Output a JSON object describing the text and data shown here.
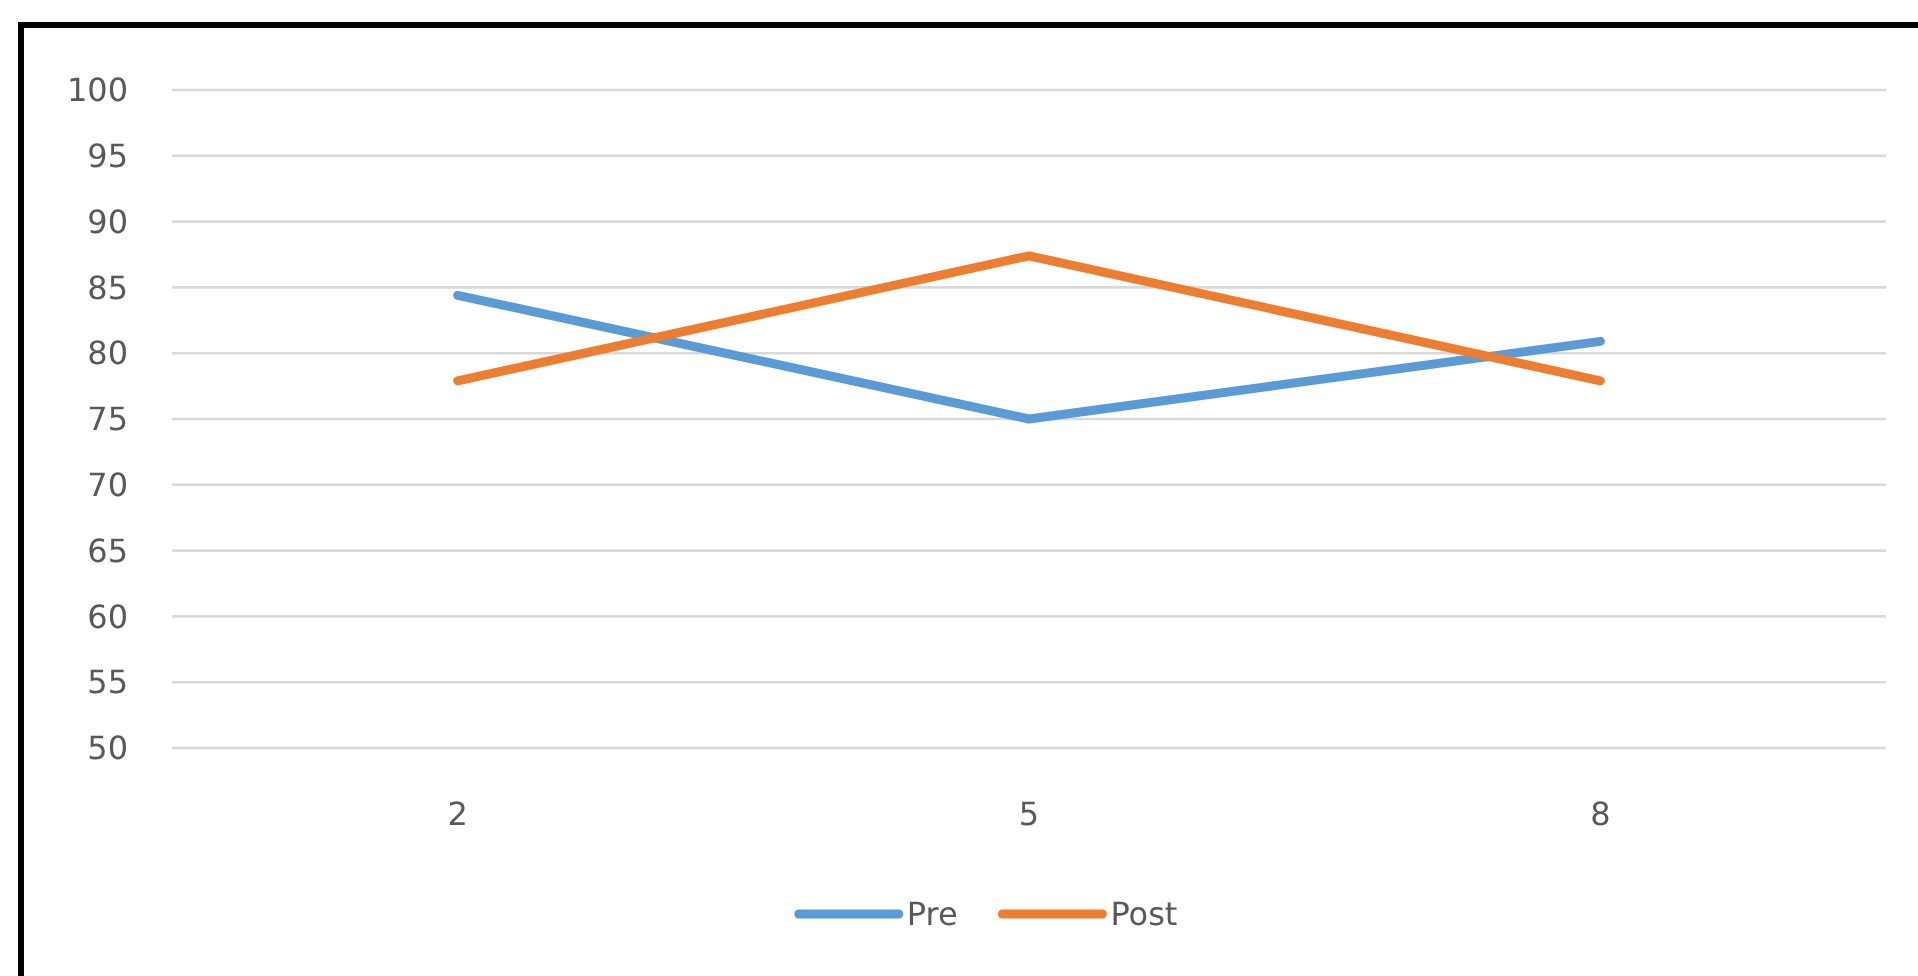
{
  "chart_data": {
    "type": "line",
    "categories": [
      "2",
      "5",
      "8"
    ],
    "series": [
      {
        "name": "Pre",
        "color": "#5b9bd5",
        "values": [
          84.4,
          75,
          80.9
        ]
      },
      {
        "name": "Post",
        "color": "#ed7d31",
        "values": [
          77.9,
          87.4,
          77.9
        ]
      }
    ],
    "ylim": [
      50,
      100
    ],
    "yticks": [
      50,
      55,
      60,
      65,
      70,
      75,
      80,
      85,
      90,
      95,
      100
    ],
    "grid": "y",
    "legend": "bottom"
  }
}
